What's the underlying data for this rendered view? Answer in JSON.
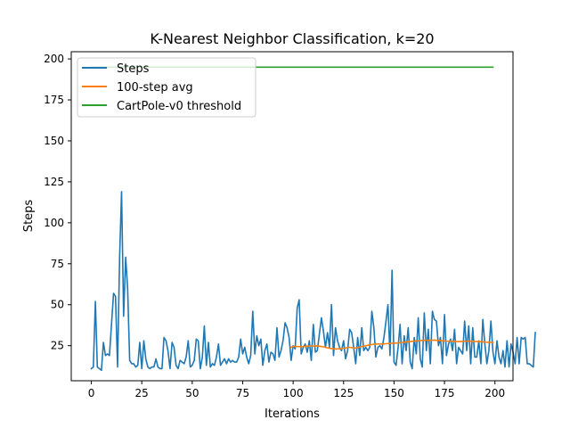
{
  "chart_data": {
    "type": "line",
    "title": "K-Nearest Neighbor Classification, k=20",
    "xlabel": "Iterations",
    "ylabel": "Steps",
    "xlim": [
      -9.95,
      208.95
    ],
    "ylim": [
      3.6,
      204.4
    ],
    "xticks": [
      0,
      25,
      50,
      75,
      100,
      125,
      150,
      175,
      200
    ],
    "yticks": [
      25,
      50,
      75,
      100,
      125,
      150,
      175,
      200
    ],
    "grid": false,
    "legend_position": "top-left",
    "series": [
      {
        "name": "Steps",
        "color": "#1f77b4",
        "x_start": 0,
        "values": [
          11,
          12,
          52,
          12,
          11,
          10,
          27,
          19,
          20,
          19,
          38,
          57,
          55,
          12,
          79,
          119,
          43,
          79,
          60,
          16,
          14,
          14,
          12,
          13,
          27,
          11,
          28,
          17,
          12,
          11,
          12,
          12,
          17,
          12,
          11,
          11,
          30,
          28,
          22,
          11,
          27,
          24,
          13,
          11,
          16,
          15,
          14,
          18,
          28,
          12,
          13,
          16,
          29,
          28,
          11,
          18,
          37,
          13,
          27,
          12,
          14,
          13,
          18,
          26,
          13,
          15,
          17,
          14,
          17,
          15,
          16,
          15,
          15,
          18,
          29,
          20,
          24,
          18,
          14,
          19,
          46,
          20,
          31,
          25,
          29,
          13,
          22,
          26,
          15,
          21,
          20,
          16,
          36,
          18,
          22,
          28,
          39,
          36,
          30,
          16,
          25,
          23,
          48,
          53,
          20,
          24,
          26,
          21,
          28,
          16,
          38,
          21,
          22,
          32,
          42,
          34,
          24,
          33,
          24,
          50,
          19,
          36,
          28,
          24,
          22,
          28,
          17,
          22,
          35,
          33,
          24,
          14,
          30,
          19,
          36,
          22,
          24,
          22,
          24,
          46,
          36,
          18,
          24,
          25,
          23,
          30,
          40,
          50,
          19,
          71,
          15,
          13,
          24,
          38,
          14,
          31,
          22,
          36,
          15,
          11,
          30,
          20,
          42,
          17,
          12,
          45,
          22,
          35,
          14,
          46,
          41,
          40,
          25,
          30,
          14,
          44,
          19,
          26,
          29,
          22,
          35,
          14,
          24,
          22,
          20,
          40,
          22,
          37,
          14,
          36,
          18,
          18,
          28,
          14,
          41,
          26,
          14,
          22,
          40,
          21,
          14,
          28,
          18,
          14,
          22,
          12,
          28,
          12,
          26,
          21,
          14,
          30,
          14,
          30,
          29,
          30,
          14,
          14,
          13,
          12,
          33
        ]
      },
      {
        "name": "100-step avg",
        "color": "#ff7f0e",
        "x": [
          99,
          100,
          102,
          104,
          106,
          108,
          110,
          112,
          114,
          116,
          118,
          120,
          122,
          124,
          126,
          128,
          130,
          132,
          134,
          136,
          138,
          140,
          142,
          144,
          146,
          148,
          150,
          152,
          154,
          156,
          158,
          160,
          162,
          164,
          166,
          168,
          170,
          172,
          174,
          176,
          178,
          180,
          182,
          184,
          186,
          188,
          190,
          192,
          194,
          196,
          199
        ],
        "values": [
          24,
          24.5,
          24.5,
          24.4,
          24.6,
          24.8,
          24.7,
          24.9,
          24.5,
          24,
          23.4,
          23,
          23,
          23.2,
          23.6,
          24,
          23.5,
          23.8,
          24.5,
          25,
          25.5,
          25.9,
          26,
          26.1,
          26.2,
          26.4,
          26.5,
          26.7,
          27,
          27.2,
          27.5,
          27.8,
          28,
          28.2,
          28.3,
          28.3,
          28.4,
          28.2,
          28,
          27.8,
          27.7,
          27.6,
          27.5,
          27.6,
          27.7,
          27.8,
          27.6,
          27.5,
          27.3,
          27.1,
          27
        ]
      },
      {
        "name": "CartPole-v0 threshold",
        "color": "#2ca02c",
        "x": [
          0,
          199
        ],
        "values": [
          195,
          195
        ]
      }
    ]
  }
}
